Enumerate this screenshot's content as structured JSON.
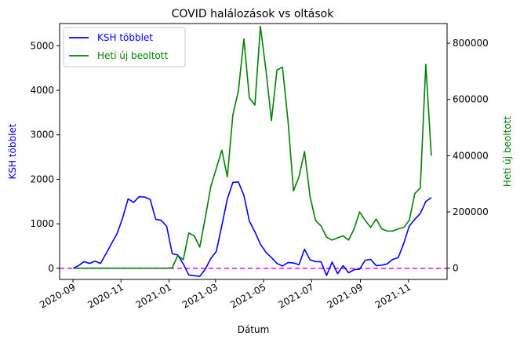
{
  "chart_data": {
    "type": "line",
    "title": "COVID halálozások vs oltások",
    "xlabel": "Dátum",
    "xlim": [
      "2020-08-15",
      "2021-12-20"
    ],
    "x_ticks": [
      "2020-09",
      "2020-11",
      "2021-01",
      "2021-03",
      "2021-05",
      "2021-07",
      "2021-09",
      "2021-11"
    ],
    "y_left": {
      "label": "KSH többlet",
      "color": "#0000ff",
      "ylim": [
        -250,
        5500
      ],
      "ticks": [
        0,
        1000,
        2000,
        3000,
        4000,
        5000
      ]
    },
    "y_right": {
      "label": "Heti új beoltott",
      "color": "#008000",
      "ylim": [
        -40000,
        870000
      ],
      "ticks": [
        0,
        200000,
        400000,
        600000,
        800000
      ]
    },
    "reference_line": {
      "y": 0,
      "axis": "left",
      "color": "#ff00ff",
      "style": "dashed"
    },
    "legend": {
      "placement": "top-left"
    },
    "series": [
      {
        "name": "KSH többlet",
        "axis": "left",
        "color": "#0000ff",
        "x": [
          "2020-09-01",
          "2020-09-08",
          "2020-09-15",
          "2020-09-22",
          "2020-09-29",
          "2020-10-06",
          "2020-10-13",
          "2020-10-20",
          "2020-10-27",
          "2020-11-03",
          "2020-11-10",
          "2020-11-17",
          "2020-11-24",
          "2020-12-01",
          "2020-12-08",
          "2020-12-15",
          "2020-12-22",
          "2020-12-29",
          "2021-01-05",
          "2021-01-12",
          "2021-01-19",
          "2021-01-26",
          "2021-02-02",
          "2021-02-09",
          "2021-02-16",
          "2021-02-23",
          "2021-03-02",
          "2021-03-09",
          "2021-03-16",
          "2021-03-23",
          "2021-03-30",
          "2021-04-06",
          "2021-04-13",
          "2021-04-20",
          "2021-04-27",
          "2021-05-04",
          "2021-05-11",
          "2021-05-18",
          "2021-05-25",
          "2021-06-01",
          "2021-06-08",
          "2021-06-15",
          "2021-06-22",
          "2021-06-29",
          "2021-07-06",
          "2021-07-13",
          "2021-07-20",
          "2021-07-27",
          "2021-08-03",
          "2021-08-10",
          "2021-08-17",
          "2021-08-24",
          "2021-08-31",
          "2021-09-07",
          "2021-09-14",
          "2021-09-21",
          "2021-09-28",
          "2021-10-05",
          "2021-10-12",
          "2021-10-19",
          "2021-10-26",
          "2021-11-02",
          "2021-11-09",
          "2021-11-16",
          "2021-11-23",
          "2021-11-30"
        ],
        "values": [
          0,
          60,
          150,
          110,
          160,
          110,
          330,
          560,
          780,
          1130,
          1560,
          1480,
          1610,
          1600,
          1550,
          1100,
          1080,
          940,
          330,
          300,
          100,
          -150,
          -165,
          -180,
          -20,
          220,
          380,
          960,
          1560,
          1930,
          1940,
          1640,
          1060,
          820,
          540,
          360,
          240,
          110,
          50,
          130,
          120,
          80,
          430,
          190,
          150,
          145,
          -160,
          140,
          -120,
          60,
          -100,
          -30,
          -20,
          180,
          200,
          60,
          70,
          100,
          200,
          240,
          560,
          950,
          1100,
          1230,
          1500,
          1590
        ]
      },
      {
        "name": "Heti új beoltott",
        "axis": "right",
        "color": "#008000",
        "x": [
          "2020-09-01",
          "2020-09-08",
          "2020-09-15",
          "2020-09-22",
          "2020-09-29",
          "2020-10-06",
          "2020-10-13",
          "2020-10-20",
          "2020-10-27",
          "2020-11-03",
          "2020-11-10",
          "2020-11-17",
          "2020-11-24",
          "2020-12-01",
          "2020-12-08",
          "2020-12-15",
          "2020-12-22",
          "2020-12-29",
          "2021-01-05",
          "2021-01-12",
          "2021-01-19",
          "2021-01-26",
          "2021-02-02",
          "2021-02-09",
          "2021-02-16",
          "2021-02-23",
          "2021-03-02",
          "2021-03-09",
          "2021-03-16",
          "2021-03-23",
          "2021-03-30",
          "2021-04-06",
          "2021-04-13",
          "2021-04-20",
          "2021-04-27",
          "2021-05-04",
          "2021-05-11",
          "2021-05-18",
          "2021-05-25",
          "2021-06-01",
          "2021-06-08",
          "2021-06-15",
          "2021-06-22",
          "2021-06-29",
          "2021-07-06",
          "2021-07-13",
          "2021-07-20",
          "2021-07-27",
          "2021-08-03",
          "2021-08-10",
          "2021-08-17",
          "2021-08-24",
          "2021-08-31",
          "2021-09-07",
          "2021-09-14",
          "2021-09-21",
          "2021-09-28",
          "2021-10-05",
          "2021-10-12",
          "2021-10-19",
          "2021-10-26",
          "2021-11-02",
          "2021-11-09",
          "2021-11-16",
          "2021-11-23",
          "2021-11-30"
        ],
        "values": [
          0,
          0,
          0,
          0,
          0,
          0,
          0,
          0,
          0,
          0,
          0,
          0,
          0,
          0,
          0,
          0,
          0,
          0,
          1000,
          45000,
          30000,
          125000,
          115000,
          75000,
          180000,
          290000,
          355000,
          420000,
          325000,
          545000,
          630000,
          815000,
          605000,
          580000,
          860000,
          705000,
          525000,
          705000,
          715000,
          525000,
          275000,
          325000,
          415000,
          255000,
          170000,
          150000,
          110000,
          100000,
          108000,
          115000,
          100000,
          140000,
          200000,
          170000,
          145000,
          175000,
          140000,
          132000,
          132000,
          140000,
          145000,
          170000,
          265000,
          285000,
          725000,
          400000
        ]
      }
    ]
  }
}
